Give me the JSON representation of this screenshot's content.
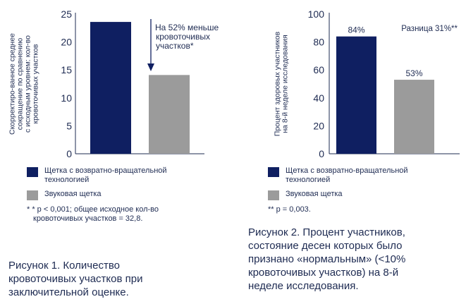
{
  "colors": {
    "navy": "#0f1f61",
    "gray": "#9b9b9b",
    "axis": "#1e2b52",
    "arrow": "#0f1f61"
  },
  "chart_data": [
    {
      "type": "bar",
      "categories": [
        "Щетка с возвратно-вращательной технологией",
        "Звуковая щетка"
      ],
      "values": [
        23.6,
        14.1
      ],
      "ylim": [
        0,
        25
      ],
      "yticks": [
        0,
        5,
        10,
        15,
        20,
        25
      ],
      "ylabel_lines": [
        "Скорректиро-ванное среднее",
        "сокращение по сравнению",
        "с исходным уровнем: кол-во",
        "кровоточивых участков"
      ],
      "annotation_lines": [
        "На 52% меньше",
        "кровоточивых",
        "участков*"
      ],
      "bar_labels": null
    },
    {
      "type": "bar",
      "categories": [
        "Щетка с возвратно-вращательной технологией",
        "Звуковая щетка"
      ],
      "values": [
        84,
        53
      ],
      "ylim": [
        0,
        100
      ],
      "yticks": [
        0,
        20,
        40,
        60,
        80,
        100
      ],
      "ylabel_lines": [
        "Процент здоровых участников",
        "на 8-й неделе исследования"
      ],
      "annotation": "Разница 31%**",
      "bar_labels": [
        "84%",
        "53%"
      ]
    }
  ],
  "legend1": {
    "item1_line1": "Щетка с возвратно-вращательной",
    "item1_line2": "технологией",
    "item2": "Звуковая щетка",
    "note_line1": "* * p < 0,001; общее исходное кол-во",
    "note_line2": "кровоточивых участков = 32,8."
  },
  "legend2": {
    "item1_line1": "Щетка с возвратно-вращательной",
    "item1_line2": "технологией",
    "item2": "Звуковая щетка",
    "note": "** p = 0,003."
  },
  "caption1": {
    "line1": "Рисунок 1. Количество",
    "line2": "кровоточивых участков при",
    "line3": "заключительной оценке."
  },
  "caption2": {
    "line1": "Рисунок 2. Процент участников,",
    "line2": "состояние десен которых было",
    "line3": "признано «нормальным» (<10%",
    "line4": "кровоточивых участков) на 8-й",
    "line5": "неделе исследования."
  }
}
